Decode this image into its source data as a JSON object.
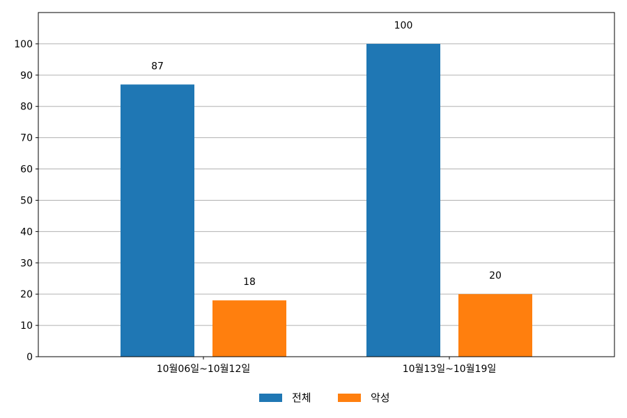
{
  "chart_data": {
    "type": "bar",
    "categories": [
      "10월06일~10월12일",
      "10월13일~10월19일"
    ],
    "series": [
      {
        "name": "전체",
        "values": [
          87,
          100
        ],
        "color": "#1f77b4"
      },
      {
        "name": "악성",
        "values": [
          18,
          20
        ],
        "color": "#ff7f0e"
      }
    ],
    "ylim": [
      0,
      110
    ],
    "yticks": [
      0,
      10,
      20,
      30,
      40,
      50,
      60,
      70,
      80,
      90,
      100
    ],
    "grid": "y",
    "legend": "bottom-center",
    "data_labels": true
  }
}
